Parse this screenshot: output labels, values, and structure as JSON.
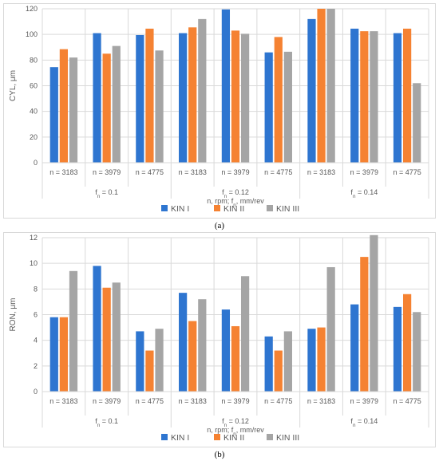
{
  "colors": {
    "kin1": "#2e75d0",
    "kin2": "#f58232",
    "kin3": "#a5a5a5",
    "grid": "#d9d9d9",
    "text": "#595959"
  },
  "chart_data": [
    {
      "type": "bar",
      "caption": "(a)",
      "ylabel": "CYL, μm",
      "xlabel": "n, rpm; f_n, mm/rev",
      "ylim": [
        0,
        120
      ],
      "yticks": [
        0,
        20,
        40,
        60,
        80,
        100,
        120
      ],
      "grid": true,
      "legend_position": "bottom",
      "categories": [
        "n = 3183",
        "n = 3979",
        "n = 4775",
        "n = 3183",
        "n = 3979",
        "n = 4775",
        "n = 3183",
        "n = 3979",
        "n = 4775"
      ],
      "groups": [
        {
          "label": "f_n = 0.1",
          "start": 0,
          "count": 3
        },
        {
          "label": "f_n = 0.12",
          "start": 3,
          "count": 3
        },
        {
          "label": "f_n = 0.14",
          "start": 6,
          "count": 3
        }
      ],
      "series": [
        {
          "name": "KIN I",
          "color_key": "kin1",
          "values": [
            74.5,
            101,
            99.5,
            101,
            119.5,
            86,
            112,
            104.5,
            101
          ]
        },
        {
          "name": "KIN II",
          "color_key": "kin2",
          "values": [
            88.5,
            85,
            104.5,
            105.5,
            103,
            98,
            120,
            102.5,
            104.5
          ]
        },
        {
          "name": "KIN III",
          "color_key": "kin3",
          "values": [
            82,
            91,
            87.5,
            112,
            100.5,
            86.5,
            120,
            102.5,
            62
          ]
        }
      ]
    },
    {
      "type": "bar",
      "caption": "(b)",
      "ylabel": "RON, μm",
      "xlabel": "n, rpm; f_n, mm/rev",
      "ylim": [
        0,
        12
      ],
      "yticks": [
        0,
        2,
        4,
        6,
        8,
        10,
        12
      ],
      "grid": true,
      "legend_position": "bottom",
      "categories": [
        "n = 3183",
        "n = 3979",
        "n = 4775",
        "n = 3183",
        "n = 3979",
        "n = 4775",
        "n = 3183",
        "n = 3979",
        "n = 4775"
      ],
      "groups": [
        {
          "label": "f_n = 0.1",
          "start": 0,
          "count": 3
        },
        {
          "label": "f_n = 0.12",
          "start": 3,
          "count": 3
        },
        {
          "label": "f_n = 0.14",
          "start": 6,
          "count": 3
        }
      ],
      "series": [
        {
          "name": "KIN I",
          "color_key": "kin1",
          "values": [
            5.8,
            9.8,
            4.7,
            7.7,
            6.4,
            4.3,
            4.9,
            6.8,
            6.6
          ]
        },
        {
          "name": "KIN II",
          "color_key": "kin2",
          "values": [
            5.8,
            8.1,
            3.2,
            5.5,
            5.1,
            3.2,
            5.0,
            10.5,
            7.6
          ]
        },
        {
          "name": "KIN III",
          "color_key": "kin3",
          "values": [
            9.4,
            8.5,
            4.9,
            7.2,
            9.0,
            4.7,
            9.7,
            12.2,
            6.2
          ]
        }
      ]
    }
  ]
}
